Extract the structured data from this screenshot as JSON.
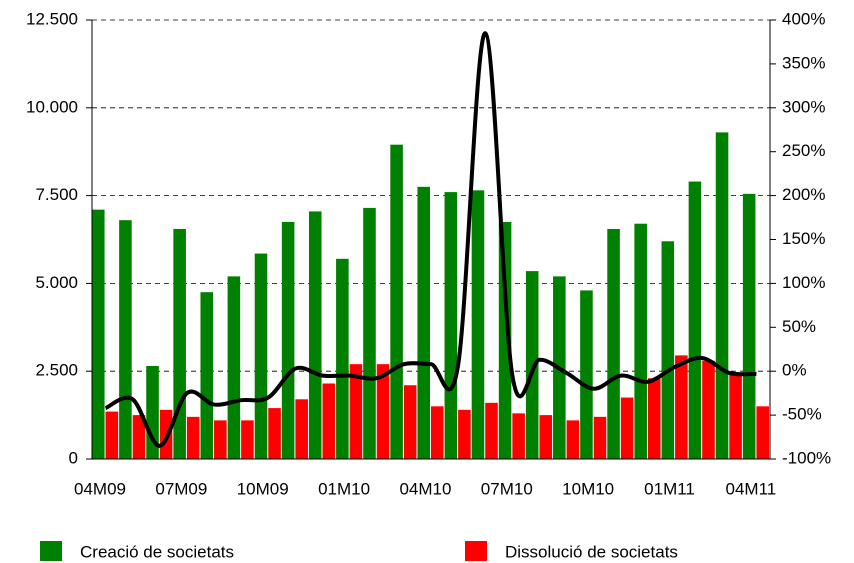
{
  "chart_data": {
    "type": "bar",
    "categories": [
      "04M09",
      null,
      null,
      "07M09",
      null,
      null,
      "10M09",
      null,
      null,
      "01M10",
      null,
      null,
      "04M10",
      null,
      null,
      "07M10",
      null,
      null,
      "10M10",
      null,
      null,
      "01M11",
      null,
      null,
      "04M11"
    ],
    "series": [
      {
        "name": "Creació de societats",
        "color": "#008000",
        "values": [
          7100,
          6800,
          2650,
          6550,
          4750,
          5200,
          5850,
          6750,
          7050,
          5700,
          7150,
          8950,
          7750,
          7600,
          7650,
          6750,
          5350,
          5200,
          4800,
          6550,
          6700,
          6200,
          7900,
          9300,
          7550
        ]
      },
      {
        "name": "Dissolució de societats",
        "color": "#ff0000",
        "values": [
          1350,
          1250,
          1400,
          1200,
          1100,
          1100,
          1450,
          1700,
          2150,
          2700,
          2700,
          2100,
          1500,
          1400,
          1600,
          1300,
          1250,
          1100,
          1200,
          1750,
          2300,
          2950,
          2800,
          2400,
          1500
        ]
      },
      {
        "type": "line",
        "axis": "y2",
        "color": "#000000",
        "values": [
          -42,
          -32,
          -85,
          -25,
          -38,
          -33,
          -30,
          3,
          -5,
          -5,
          -8,
          8,
          8,
          7,
          385,
          -5,
          13,
          -2,
          -20,
          -5,
          -12,
          5,
          15,
          -2,
          -3
        ]
      }
    ],
    "ylim": [
      0,
      12500
    ],
    "yticks": [
      0,
      {
        "value": 2500,
        "label": "2.500"
      },
      {
        "value": 5000,
        "label": "5.000"
      },
      {
        "value": 7500,
        "label": "7.500"
      },
      {
        "value": 10000,
        "label": "10.000"
      },
      {
        "value": 12500,
        "label": "12.500"
      }
    ],
    "y2lim": [
      -100,
      400
    ],
    "y2ticks": [
      {
        "value": -100,
        "label": "-100%"
      },
      {
        "value": -50,
        "label": "-50%"
      },
      {
        "value": 0,
        "label": "0%"
      },
      {
        "value": 50,
        "label": "50%"
      },
      {
        "value": 100,
        "label": "100%"
      },
      {
        "value": 150,
        "label": "150%"
      },
      {
        "value": 200,
        "label": "200%"
      },
      {
        "value": 250,
        "label": "250%"
      },
      {
        "value": 300,
        "label": "300%"
      },
      {
        "value": 350,
        "label": "350%"
      },
      {
        "value": 400,
        "label": "400%"
      }
    ],
    "grid": true,
    "legend": "bottom"
  }
}
